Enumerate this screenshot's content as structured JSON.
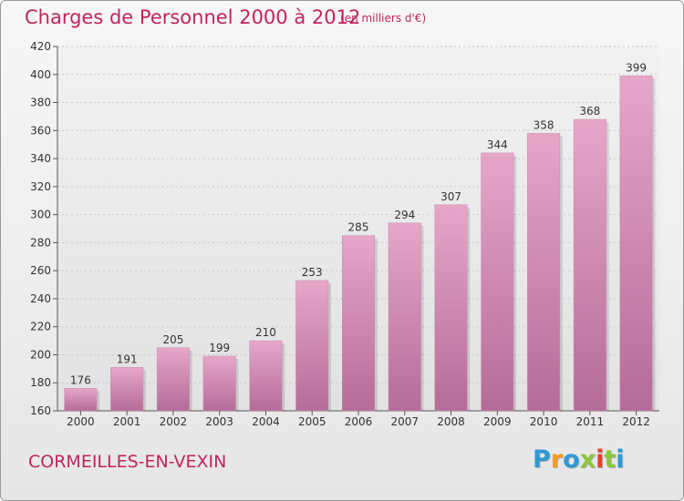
{
  "chart_data": {
    "type": "bar",
    "title": "Charges de Personnel 2000 à 2012",
    "subtitle": "(en milliers d'€)",
    "categories": [
      "2000",
      "2001",
      "2002",
      "2003",
      "2004",
      "2005",
      "2006",
      "2007",
      "2008",
      "2009",
      "2010",
      "2011",
      "2012"
    ],
    "values": [
      176,
      191,
      205,
      199,
      210,
      253,
      285,
      294,
      307,
      344,
      358,
      368,
      399
    ],
    "xlabel": "",
    "ylabel": "",
    "ylim": [
      160,
      420
    ],
    "yticks": [
      160,
      180,
      200,
      220,
      240,
      260,
      280,
      300,
      320,
      340,
      360,
      380,
      400,
      420
    ],
    "grid": true,
    "bar_color_top": "#e6a6c9",
    "bar_color_bottom": "#b56c98"
  },
  "footer": {
    "city": "CORMEILLES-EN-VEXIN",
    "logo_letters": [
      "P",
      "r",
      "o",
      "x",
      "i",
      "t",
      "i"
    ],
    "logo_colors": [
      "#2e9ad6",
      "#f29b1d",
      "#2e9ad6",
      "#8cc63f",
      "#e5412b",
      "#8cc63f",
      "#2e9ad6"
    ]
  },
  "colors": {
    "accent": "#c0245e"
  }
}
